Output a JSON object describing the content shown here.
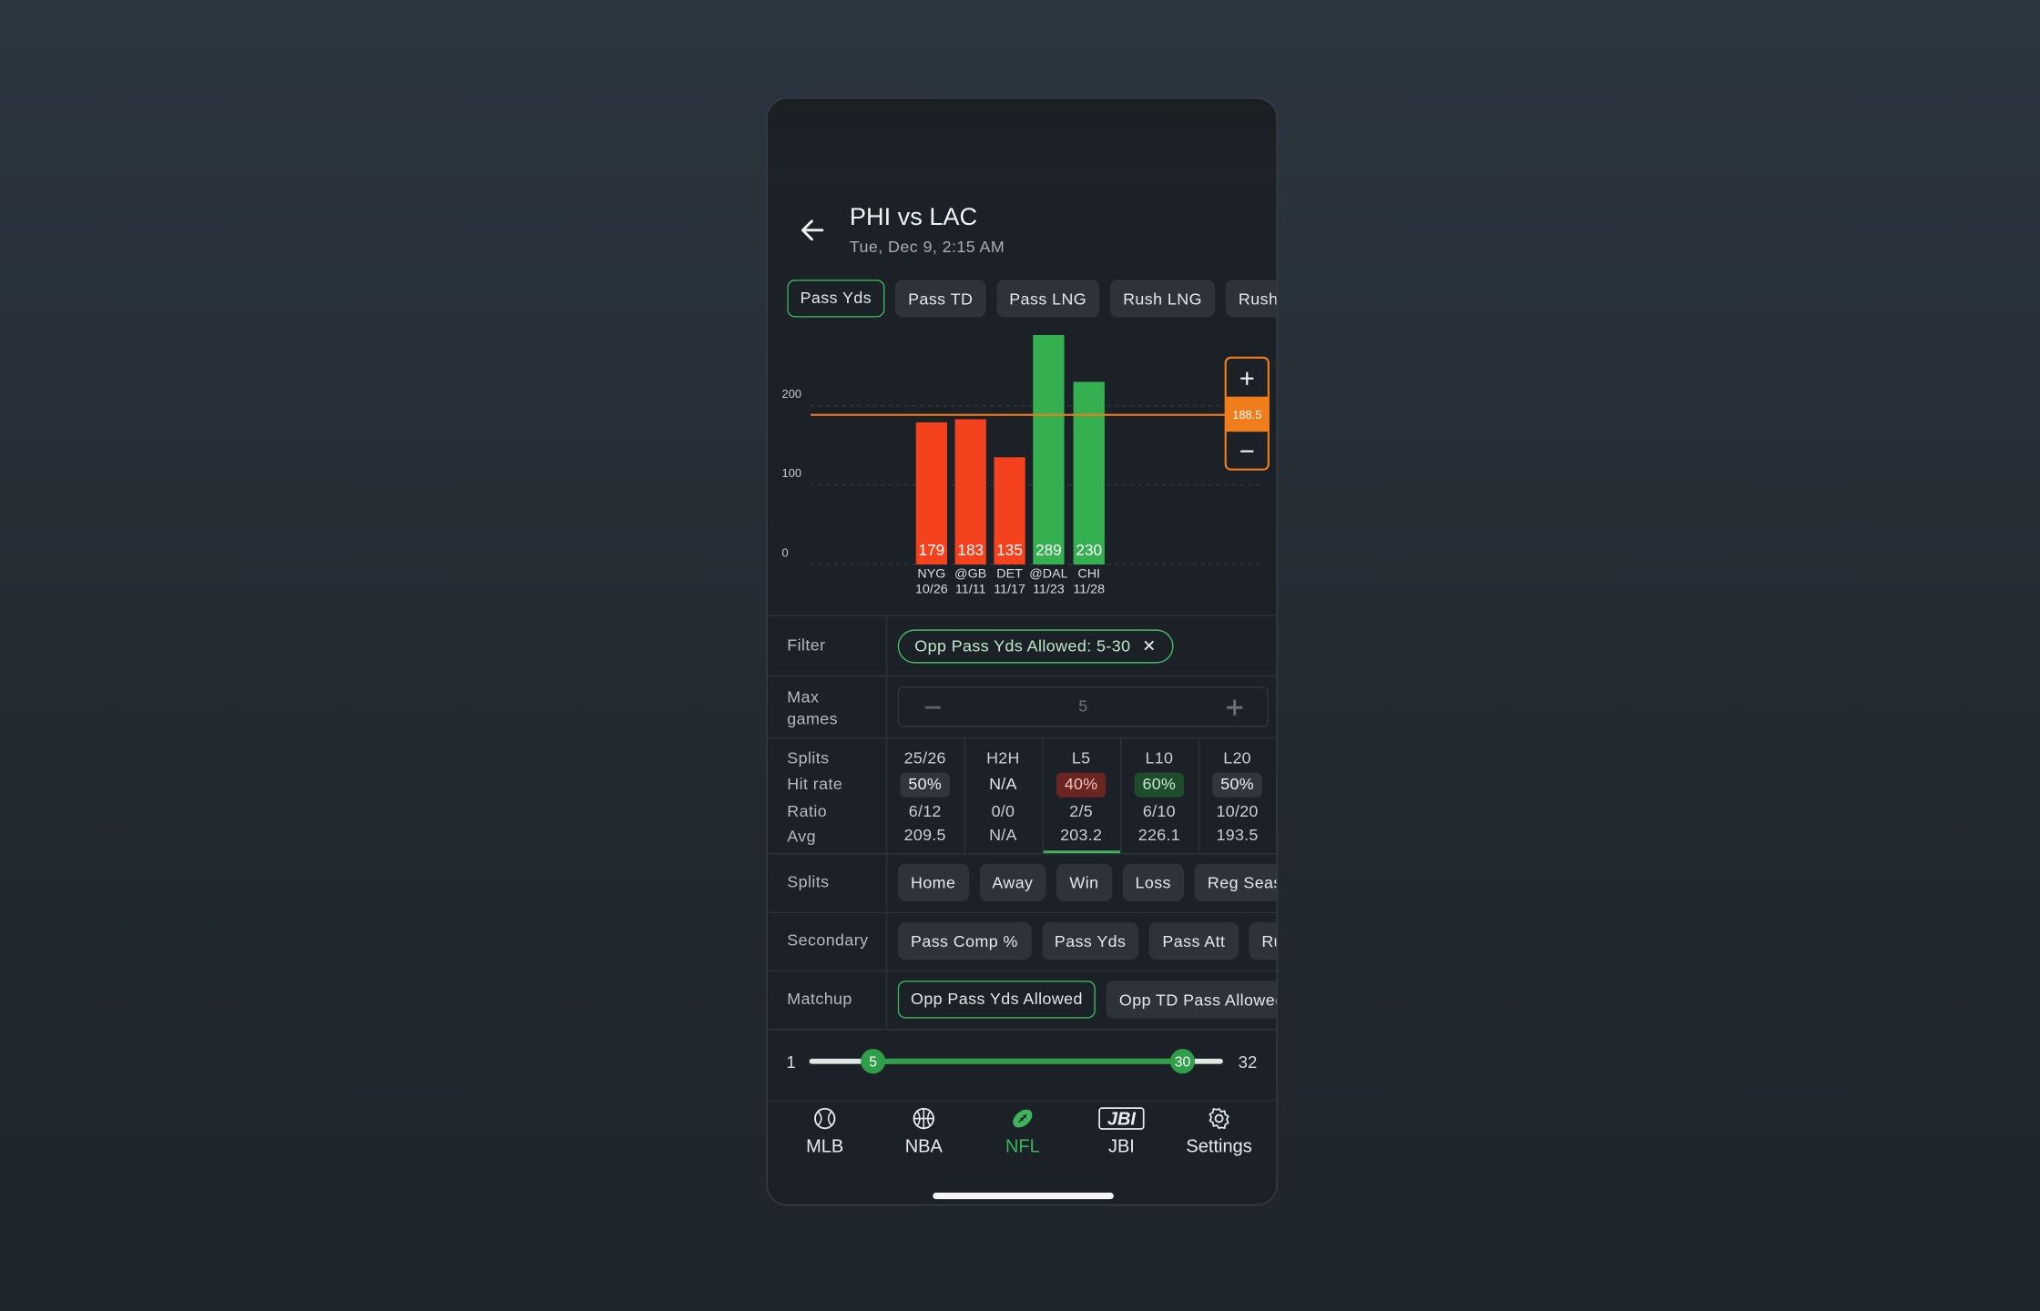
{
  "header": {
    "title": "PHI vs LAC",
    "subtitle": "Tue, Dec 9, 2:15 AM"
  },
  "stat_tabs": {
    "items": [
      "Pass Yds",
      "Pass TD",
      "Pass LNG",
      "Rush LNG",
      "Rush"
    ],
    "selected": 0
  },
  "chart_data": {
    "type": "bar",
    "categories": [
      "NYG",
      "@GB",
      "DET",
      "@DAL",
      "CHI"
    ],
    "dates": [
      "10/26",
      "11/11",
      "11/17",
      "11/23",
      "11/28"
    ],
    "values": [
      179,
      183,
      135,
      289,
      230
    ],
    "ylim": [
      0,
      290
    ],
    "yticks": [
      0,
      100,
      200
    ],
    "grid": true,
    "line": 188.5,
    "line_color": "#f07d1c",
    "above_color": "#35b050",
    "below_color": "#f4411e"
  },
  "filter": {
    "label": "Filter",
    "chip": "Opp Pass Yds Allowed: 5-30"
  },
  "max_games": {
    "label": "Max games",
    "value": 5
  },
  "splits_table": {
    "row_labels": [
      "Splits",
      "Hit rate",
      "Ratio",
      "Avg"
    ],
    "columns": [
      {
        "name": "25/26",
        "hit_rate": "50%",
        "ratio": "6/12",
        "avg": "209.5",
        "tone": "neutral"
      },
      {
        "name": "H2H",
        "hit_rate": "N/A",
        "ratio": "0/0",
        "avg": "N/A",
        "tone": "none"
      },
      {
        "name": "L5",
        "hit_rate": "40%",
        "ratio": "2/5",
        "avg": "203.2",
        "tone": "bad"
      },
      {
        "name": "L10",
        "hit_rate": "60%",
        "ratio": "6/10",
        "avg": "226.1",
        "tone": "good"
      },
      {
        "name": "L20",
        "hit_rate": "50%",
        "ratio": "10/20",
        "avg": "193.5",
        "tone": "neutral"
      }
    ],
    "selected": 2
  },
  "splits": {
    "label": "Splits",
    "chips": [
      "Home",
      "Away",
      "Win",
      "Loss",
      "Reg Season"
    ]
  },
  "secondary": {
    "label": "Secondary",
    "chips": [
      "Pass Comp %",
      "Pass Yds",
      "Pass Att",
      "Rush"
    ]
  },
  "matchup": {
    "label": "Matchup",
    "chips": [
      "Opp Pass Yds Allowed",
      "Opp TD Pass Allowed"
    ],
    "selected": 0
  },
  "range_slider": {
    "min": 1,
    "max": 32,
    "low": 5,
    "high": 30
  },
  "nav": {
    "items": [
      "MLB",
      "NBA",
      "NFL",
      "JBI",
      "Settings"
    ],
    "logo": "JBI",
    "active": 2
  }
}
